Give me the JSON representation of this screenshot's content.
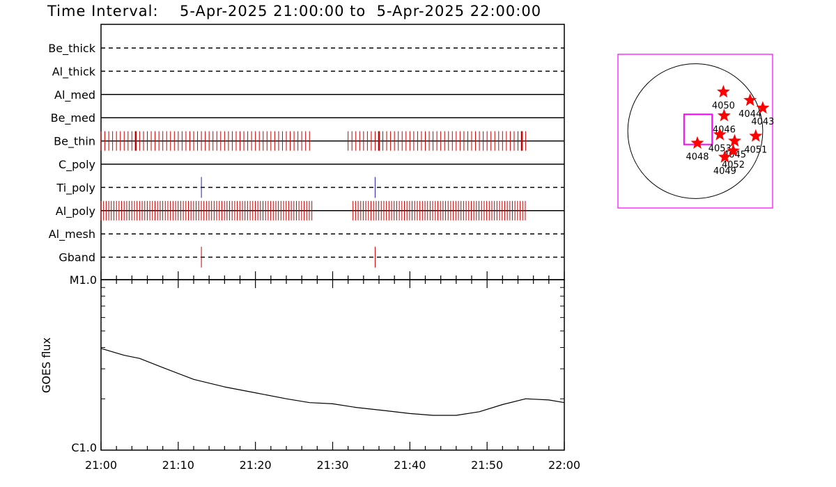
{
  "title_prefix": "Time Interval:",
  "title_range": "5-Apr-2025 21:00:00 to  5-Apr-2025 22:00:00",
  "chart_data": [
    {
      "type": "timeline",
      "x_range": [
        "21:00",
        "22:00"
      ],
      "rows": [
        {
          "label": "Be_thick",
          "line": "dashed",
          "events": []
        },
        {
          "label": "Al_thick",
          "line": "dashed",
          "events": []
        },
        {
          "label": "Al_med",
          "line": "solid",
          "events": []
        },
        {
          "label": "Be_med",
          "line": "solid",
          "events": []
        },
        {
          "label": "Be_thin",
          "line": "solid",
          "color": "#cc0000",
          "events_pattern": "dense",
          "event_interval_min": 0.5,
          "start": "21:00",
          "end": "21:55",
          "gaps": [
            [
              "21:27",
              "21:32"
            ]
          ],
          "bold": [
            "21:04.5",
            "21:36",
            "21:54.5"
          ]
        },
        {
          "label": "C_poly",
          "line": "solid",
          "events": []
        },
        {
          "label": "Ti_poly",
          "line": "dashed",
          "color": "#2020aa",
          "events": [
            "21:13",
            "21:35.5"
          ]
        },
        {
          "label": "Al_poly",
          "line": "solid",
          "color": "#cc0000",
          "events_pattern": "dense",
          "event_interval_min": 0.333,
          "start": "21:00",
          "end": "21:55",
          "gaps": [
            [
              "21:27.5",
              "21:32.5"
            ]
          ],
          "bold": []
        },
        {
          "label": "Al_mesh",
          "line": "dashed",
          "events": []
        },
        {
          "label": "Gband",
          "line": "dashed",
          "color": "#cc0000",
          "events": [
            "21:13",
            "21:35.5"
          ]
        }
      ]
    },
    {
      "type": "line",
      "ylabel": "GOES flux",
      "y_scale": "log",
      "ylim": [
        1e-06,
        1e-05
      ],
      "y_tick_labels": [
        "M1.0",
        "C1.0"
      ],
      "x_ticks": [
        "21:00",
        "21:10",
        "21:20",
        "21:30",
        "21:40",
        "21:50",
        "22:00"
      ],
      "series": [
        {
          "x": [
            "21:00",
            "21:03",
            "21:05",
            "21:08",
            "21:12",
            "21:16",
            "21:20",
            "21:24",
            "21:27",
            "21:30",
            "21:33",
            "21:37",
            "21:40",
            "21:43",
            "21:46",
            "21:49",
            "21:52",
            "21:55",
            "21:58",
            "22:00"
          ],
          "y": [
            3.95e-06,
            3.6e-06,
            3.45e-06,
            3.05e-06,
            2.6e-06,
            2.35e-06,
            2.17e-06,
            2e-06,
            1.9e-06,
            1.87e-06,
            1.78e-06,
            1.7e-06,
            1.64e-06,
            1.6e-06,
            1.6e-06,
            1.68e-06,
            1.85e-06,
            2e-06,
            1.97e-06,
            1.9e-06
          ]
        }
      ]
    },
    {
      "type": "scatter",
      "description_kind": "solar disk map",
      "x_range": [
        -1100,
        1100
      ],
      "y_range": [
        -1100,
        1100
      ],
      "points": [
        {
          "label": "4050",
          "x": 400,
          "y": 560
        },
        {
          "label": "4044",
          "x": 780,
          "y": 440
        },
        {
          "label": "4043",
          "x": 960,
          "y": 330
        },
        {
          "label": "4046",
          "x": 410,
          "y": 220
        },
        {
          "label": "4053",
          "x": 350,
          "y": -50
        },
        {
          "label": "4045",
          "x": 560,
          "y": -140
        },
        {
          "label": "4051",
          "x": 860,
          "y": -70
        },
        {
          "label": "4048",
          "x": 30,
          "y": -170
        },
        {
          "label": "4052",
          "x": 540,
          "y": -280
        },
        {
          "label": "4049",
          "x": 420,
          "y": -370
        }
      ],
      "fov_box": {
        "x": [
          -160,
          240
        ],
        "y": [
          -190,
          240
        ]
      },
      "colors": {
        "markers": "#ff0000",
        "frame": "#ff00ff"
      }
    }
  ]
}
